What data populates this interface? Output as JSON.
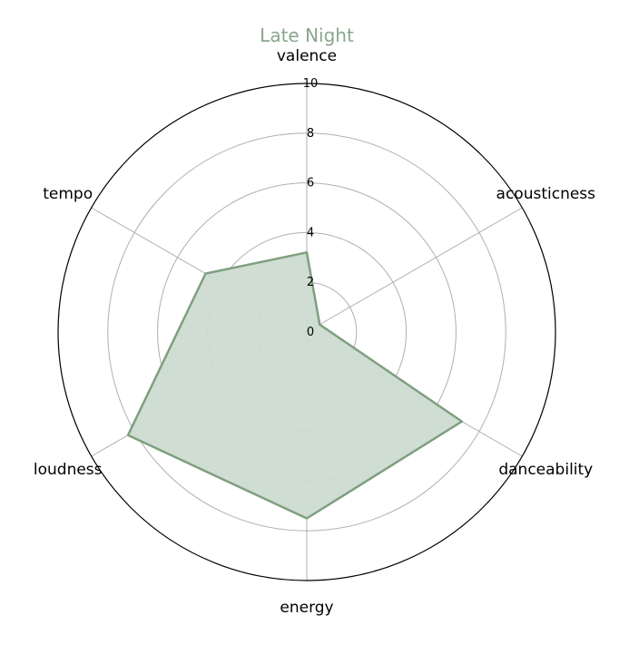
{
  "chart_data": {
    "type": "radar",
    "title": "Late Night",
    "axes": [
      "valence",
      "acousticness",
      "danceability",
      "energy",
      "loudness",
      "tempo"
    ],
    "series": [
      {
        "values": [
          3.2,
          0.6,
          7.2,
          7.5,
          8.3,
          4.7
        ]
      }
    ],
    "rlim": [
      0,
      10
    ],
    "r_ticks": [
      "0",
      "2",
      "4",
      "6",
      "8",
      "10"
    ],
    "grid": true,
    "colors": {
      "series": "#7f9f7f",
      "fill": "#cddbd0",
      "title": "#8aa68d",
      "grid": "#b0b0b0",
      "outer": "#000000"
    }
  }
}
